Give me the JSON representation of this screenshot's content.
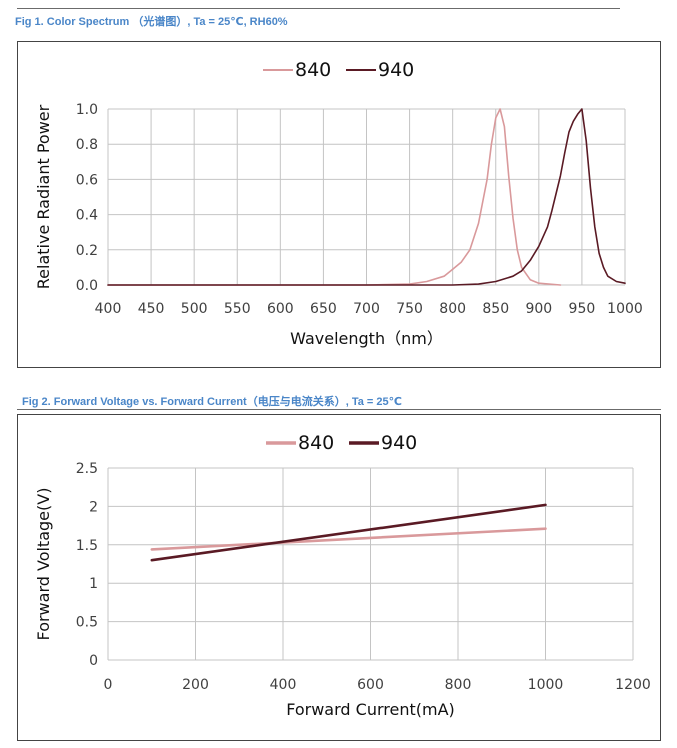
{
  "figures": [
    {
      "caption": "Fig 1. Color Spectrum （光谱图）, Ta = 25℃, RH60%"
    },
    {
      "caption": "Fig 2. Forward Voltage vs. Forward Current（电压与电流关系）, Ta = 25℃"
    }
  ],
  "colors": {
    "caption": "#4a86c8",
    "series_840": "#d9999b",
    "series_940": "#5a1a24",
    "grid": "#c4c4c4"
  },
  "chart_data": [
    {
      "type": "line",
      "title": "",
      "xlabel": "Wavelength（nm）",
      "ylabel": "Relative Radiant Power",
      "xlim": [
        400,
        1000
      ],
      "ylim": [
        0,
        1.0
      ],
      "xticks": [
        "400",
        "450",
        "500",
        "550",
        "600",
        "650",
        "700",
        "750",
        "800",
        "850",
        "900",
        "950",
        "1000"
      ],
      "yticks": [
        "0.0",
        "0.2",
        "0.4",
        "0.6",
        "0.8",
        "1.0"
      ],
      "grid": true,
      "legend": {
        "position": "top-center",
        "entries": [
          "840",
          "940"
        ]
      },
      "series": [
        {
          "name": "840",
          "x": [
            400,
            700,
            750,
            770,
            790,
            800,
            810,
            820,
            830,
            840,
            845,
            850,
            855,
            860,
            865,
            870,
            875,
            880,
            890,
            900,
            925
          ],
          "y": [
            0,
            0,
            0.005,
            0.02,
            0.05,
            0.09,
            0.13,
            0.2,
            0.35,
            0.6,
            0.8,
            0.95,
            1.0,
            0.9,
            0.62,
            0.38,
            0.2,
            0.1,
            0.03,
            0.01,
            0
          ]
        },
        {
          "name": "940",
          "x": [
            400,
            800,
            830,
            850,
            870,
            880,
            890,
            900,
            910,
            915,
            920,
            925,
            930,
            935,
            940,
            945,
            950,
            955,
            960,
            965,
            970,
            975,
            980,
            990,
            1000
          ],
          "y": [
            0,
            0,
            0.005,
            0.02,
            0.05,
            0.08,
            0.14,
            0.22,
            0.33,
            0.42,
            0.52,
            0.62,
            0.75,
            0.87,
            0.93,
            0.97,
            1.0,
            0.82,
            0.55,
            0.33,
            0.18,
            0.1,
            0.05,
            0.02,
            0.01
          ]
        }
      ]
    },
    {
      "type": "line",
      "title": "",
      "xlabel": "Forward Current(mA)",
      "ylabel": "Forward Voltage(V)",
      "xlim": [
        0,
        1200
      ],
      "ylim": [
        0,
        2.5
      ],
      "xticks": [
        "0",
        "200",
        "400",
        "600",
        "800",
        "1000",
        "1200"
      ],
      "yticks": [
        "0",
        "0.5",
        "1",
        "1.5",
        "2",
        "2.5"
      ],
      "grid": true,
      "legend": {
        "position": "top-center",
        "entries": [
          "840",
          "940"
        ]
      },
      "series": [
        {
          "name": "840",
          "x": [
            100,
            1000
          ],
          "y": [
            1.44,
            1.71
          ]
        },
        {
          "name": "940",
          "x": [
            100,
            1000
          ],
          "y": [
            1.3,
            2.02
          ]
        }
      ]
    }
  ]
}
